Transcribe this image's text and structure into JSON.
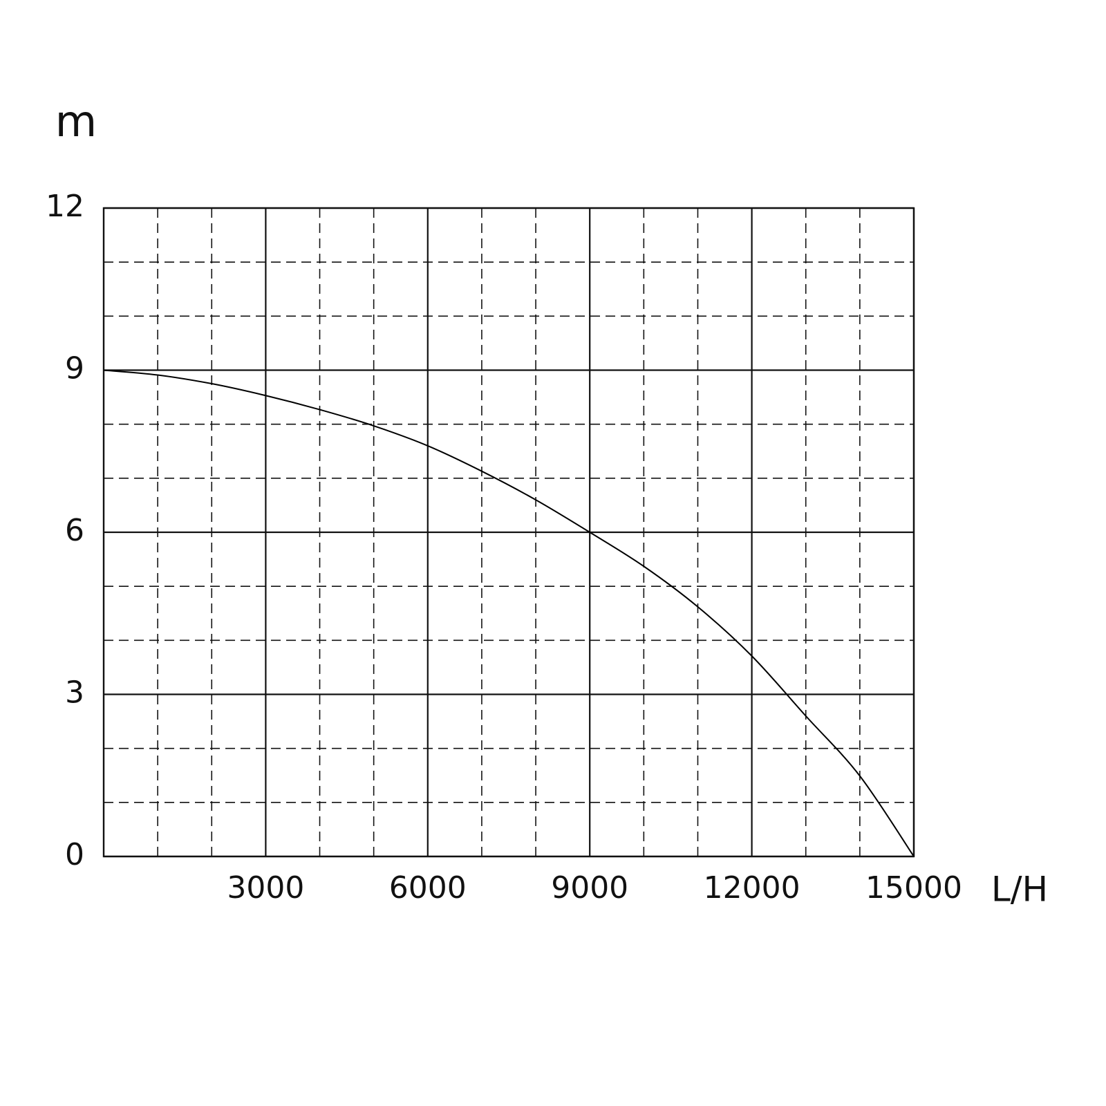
{
  "chart_data": {
    "type": "line",
    "x_label": "L/H",
    "y_label": "m",
    "x": [
      0,
      1000,
      2000,
      3000,
      4000,
      5000,
      6000,
      7000,
      8000,
      9000,
      10000,
      11000,
      12000,
      13000,
      14000,
      15000
    ],
    "values": [
      9,
      8.91,
      8.75,
      8.53,
      8.27,
      7.97,
      7.6,
      7.13,
      6.6,
      6.0,
      5.37,
      4.62,
      3.71,
      2.6,
      1.49,
      0
    ],
    "color": "#000000",
    "xlim": [
      0,
      15000
    ],
    "ylim": [
      0,
      12
    ],
    "xticks": [
      3000,
      6000,
      9000,
      12000,
      15000
    ],
    "yticks": [
      0,
      3,
      6,
      9,
      12
    ],
    "x_minor_ticks": [
      1000,
      2000,
      4000,
      5000,
      7000,
      8000,
      10000,
      11000,
      13000,
      14000
    ],
    "y_minor_ticks": [
      1,
      2,
      4,
      5,
      7,
      8,
      10,
      11
    ],
    "grid": true
  }
}
